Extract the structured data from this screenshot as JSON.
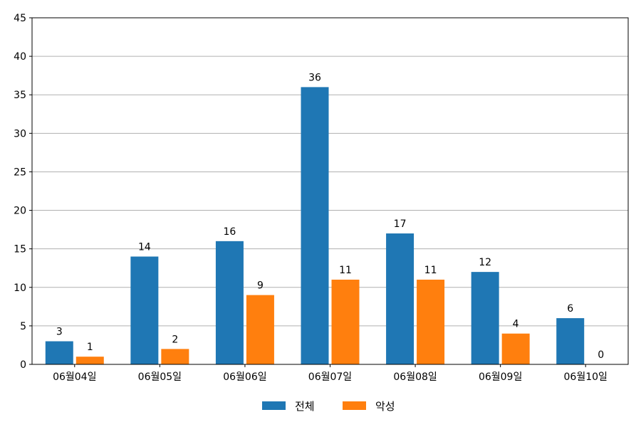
{
  "chart_data": {
    "type": "bar",
    "categories": [
      "06월04일",
      "06월05일",
      "06월06일",
      "06월07일",
      "06월08일",
      "06월09일",
      "06월10일"
    ],
    "series": [
      {
        "name": "전체",
        "color": "#1f77b4",
        "values": [
          3,
          14,
          16,
          36,
          17,
          12,
          6
        ]
      },
      {
        "name": "악성",
        "color": "#ff7f0e",
        "values": [
          1,
          2,
          9,
          11,
          11,
          4,
          0
        ]
      }
    ],
    "ylim": [
      0,
      45
    ],
    "yticks": [
      0,
      5,
      10,
      15,
      20,
      25,
      30,
      35,
      40,
      45
    ],
    "grid": true,
    "legend_position": "bottom-center",
    "xlabel": "",
    "ylabel": "",
    "title": ""
  }
}
